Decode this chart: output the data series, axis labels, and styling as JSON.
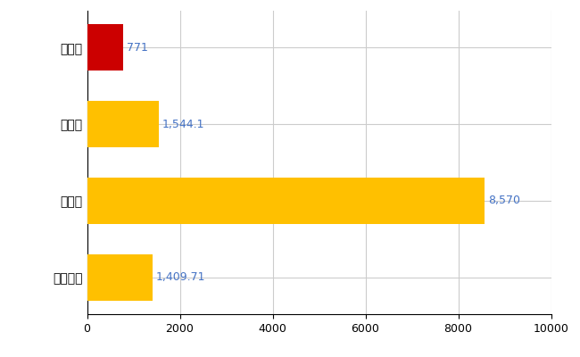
{
  "categories": [
    "対馬市",
    "県平均",
    "県最大",
    "全国平均"
  ],
  "values": [
    771,
    1544.1,
    8570,
    1409.71
  ],
  "bar_colors": [
    "#CC0000",
    "#FFC000",
    "#FFC000",
    "#FFC000"
  ],
  "value_labels": [
    "771",
    "1,544.1",
    "8,570",
    "1,409.71"
  ],
  "xlim": [
    0,
    10000
  ],
  "xticks": [
    0,
    2000,
    4000,
    6000,
    8000,
    10000
  ],
  "label_color": "#4472C4",
  "grid_color": "#CCCCCC",
  "background_color": "#FFFFFF",
  "bar_height": 0.6
}
